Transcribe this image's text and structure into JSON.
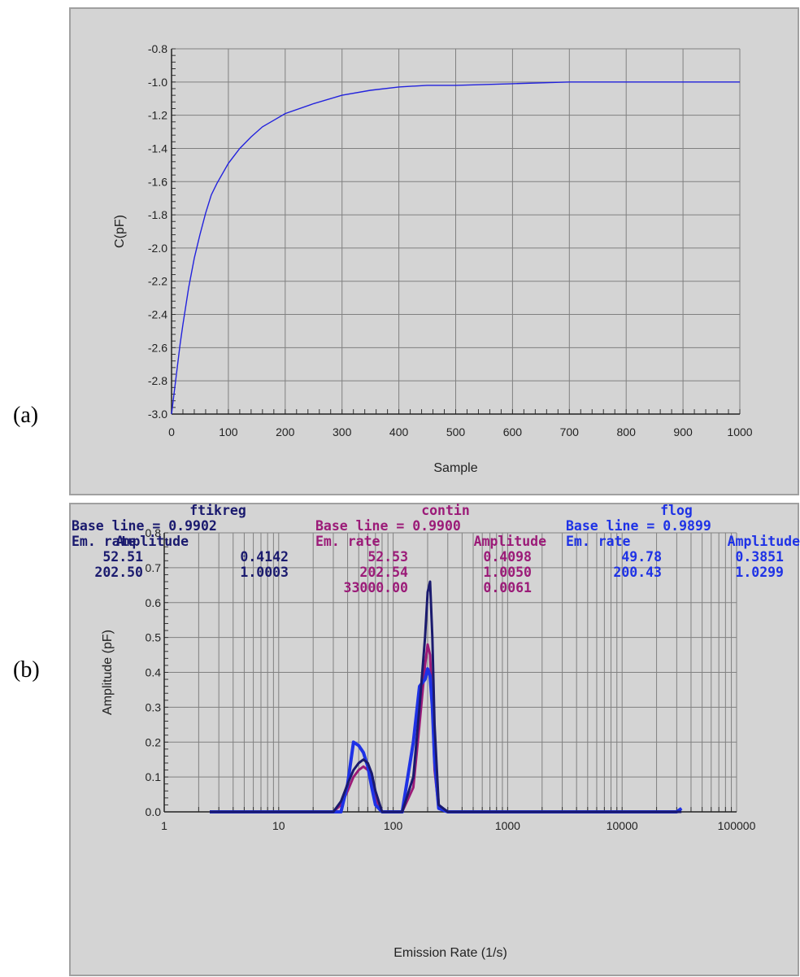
{
  "panel_labels": {
    "a": "(a)",
    "b": "(b)"
  },
  "colors": {
    "panel_bg": "#d4d4d4",
    "grid": "#808080",
    "line_a": "#2222dd",
    "ftikreg": "#1a1a6e",
    "contin": "#9b1b78",
    "flog": "#1e32e6"
  },
  "chart_data": [
    {
      "type": "line",
      "title": "",
      "xlabel": "Sample",
      "ylabel": "C(pF)",
      "xlim": [
        0,
        1000
      ],
      "ylim": [
        -3.0,
        -0.8
      ],
      "x_ticks": [
        "0",
        "100",
        "200",
        "300",
        "400",
        "500",
        "600",
        "700",
        "800",
        "900",
        "1000"
      ],
      "y_ticks": [
        "-3.0",
        "-2.8",
        "-2.6",
        "-2.4",
        "-2.2",
        "-2.0",
        "-1.8",
        "-1.6",
        "-1.4",
        "-1.2",
        "-1.0",
        "-0.8"
      ],
      "grid": true,
      "series": [
        {
          "x": [
            0,
            5,
            10,
            15,
            20,
            30,
            40,
            50,
            60,
            70,
            80,
            100,
            120,
            140,
            160,
            180,
            200,
            250,
            300,
            350,
            400,
            450,
            500,
            600,
            700,
            800,
            900,
            1000
          ],
          "y": [
            -3.0,
            -2.86,
            -2.72,
            -2.58,
            -2.46,
            -2.24,
            -2.06,
            -1.92,
            -1.79,
            -1.68,
            -1.61,
            -1.49,
            -1.4,
            -1.33,
            -1.27,
            -1.23,
            -1.19,
            -1.13,
            -1.08,
            -1.05,
            -1.03,
            -1.02,
            -1.02,
            -1.01,
            -1.0,
            -1.0,
            -1.0,
            -1.0
          ]
        }
      ]
    },
    {
      "type": "line",
      "title": "",
      "xlabel": "Emission Rate (1/s)",
      "ylabel": "Amplitude (pF)",
      "xscale": "log",
      "xlim": [
        1,
        100000
      ],
      "ylim": [
        0.0,
        0.8
      ],
      "x_ticks": [
        "1",
        "10",
        "100",
        "1000",
        "10000",
        "100000"
      ],
      "y_ticks": [
        "0.0",
        "0.1",
        "0.2",
        "0.3",
        "0.4",
        "0.5",
        "0.6",
        "0.7",
        "0.8"
      ],
      "grid": true,
      "series": [
        {
          "name": "ftikreg",
          "x": [
            2.5,
            10,
            30,
            35,
            40,
            45,
            50,
            55,
            60,
            65,
            70,
            80,
            120,
            150,
            170,
            190,
            200,
            210,
            220,
            230,
            250,
            300,
            33000
          ],
          "y": [
            0,
            0,
            0,
            0.03,
            0.08,
            0.12,
            0.14,
            0.15,
            0.14,
            0.11,
            0.06,
            0,
            0,
            0.1,
            0.3,
            0.5,
            0.63,
            0.66,
            0.5,
            0.25,
            0.02,
            0,
            0
          ]
        },
        {
          "name": "contin",
          "x": [
            2.5,
            10,
            30,
            35,
            40,
            45,
            50,
            55,
            60,
            65,
            70,
            80,
            120,
            150,
            170,
            190,
            200,
            210,
            220,
            230,
            250,
            300,
            30000,
            33000
          ],
          "y": [
            0,
            0,
            0,
            0.02,
            0.06,
            0.1,
            0.12,
            0.13,
            0.12,
            0.09,
            0.04,
            0,
            0,
            0.07,
            0.25,
            0.42,
            0.48,
            0.45,
            0.3,
            0.12,
            0.01,
            0,
            0,
            0.01
          ]
        },
        {
          "name": "flog",
          "x": [
            2.5,
            10,
            35,
            40,
            45,
            50,
            55,
            60,
            65,
            70,
            80,
            120,
            150,
            170,
            190,
            200,
            210,
            220,
            230,
            250,
            300,
            30000,
            33000
          ],
          "y": [
            0,
            0,
            0,
            0.08,
            0.2,
            0.19,
            0.17,
            0.13,
            0.07,
            0.02,
            0,
            0,
            0.2,
            0.36,
            0.38,
            0.41,
            0.39,
            0.3,
            0.15,
            0.01,
            0,
            0,
            0.01
          ]
        }
      ]
    }
  ],
  "legend_table": {
    "ftikreg": {
      "name": "ftikreg",
      "baseline": "Base line = 0.9902",
      "col1": "Em. rate",
      "col2": "Amplitude",
      "rows": [
        [
          "52.51",
          "0.4142"
        ],
        [
          "202.50",
          "1.0003"
        ]
      ]
    },
    "contin": {
      "name": "contin",
      "baseline": "Base line = 0.9900",
      "col1": "Em. rate",
      "col2": "Amplitude",
      "rows": [
        [
          "52.53",
          "0.4098"
        ],
        [
          "202.54",
          "1.0050"
        ],
        [
          "33000.00",
          "0.0061"
        ]
      ]
    },
    "flog": {
      "name": "flog",
      "baseline": "Base line = 0.9899",
      "col1": "Em. rate",
      "col2": "Amplitude",
      "rows": [
        [
          "49.78",
          "0.3851"
        ],
        [
          "200.43",
          "1.0299"
        ]
      ]
    }
  }
}
